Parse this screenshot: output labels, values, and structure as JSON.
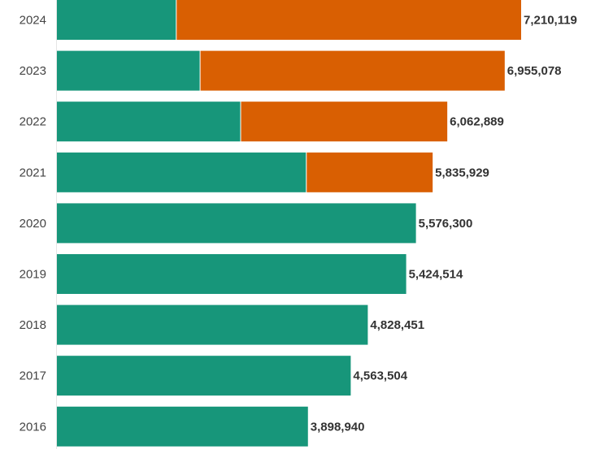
{
  "chart_data": {
    "type": "bar",
    "orientation": "horizontal",
    "stacked": true,
    "categories": [
      "2024",
      "2023",
      "2022",
      "2021",
      "2020",
      "2019",
      "2018",
      "2017",
      "2016"
    ],
    "series": [
      {
        "name": "green",
        "color": "#17967a",
        "values": [
          1860000,
          2230000,
          2860000,
          3880000,
          5576300,
          5424514,
          4828451,
          4563504,
          3898940
        ]
      },
      {
        "name": "orange",
        "color": "#d95f02",
        "values": [
          5350119,
          4725078,
          3202889,
          1955929,
          0,
          0,
          0,
          0,
          0
        ]
      }
    ],
    "totals": [
      7210119,
      6955078,
      6062889,
      5835929,
      5576300,
      5424514,
      4828451,
      4563504,
      3898940
    ],
    "value_labels": [
      "7,210,119",
      "6,955,078",
      "6,062,889",
      "5,835,929",
      "5,576,300",
      "5,424,514",
      "4,828,451",
      "4,563,504",
      "3,898,940"
    ],
    "xlim": [
      0,
      7210119
    ],
    "title": "",
    "xlabel": "",
    "ylabel": "",
    "grid": false,
    "legend": "none"
  }
}
